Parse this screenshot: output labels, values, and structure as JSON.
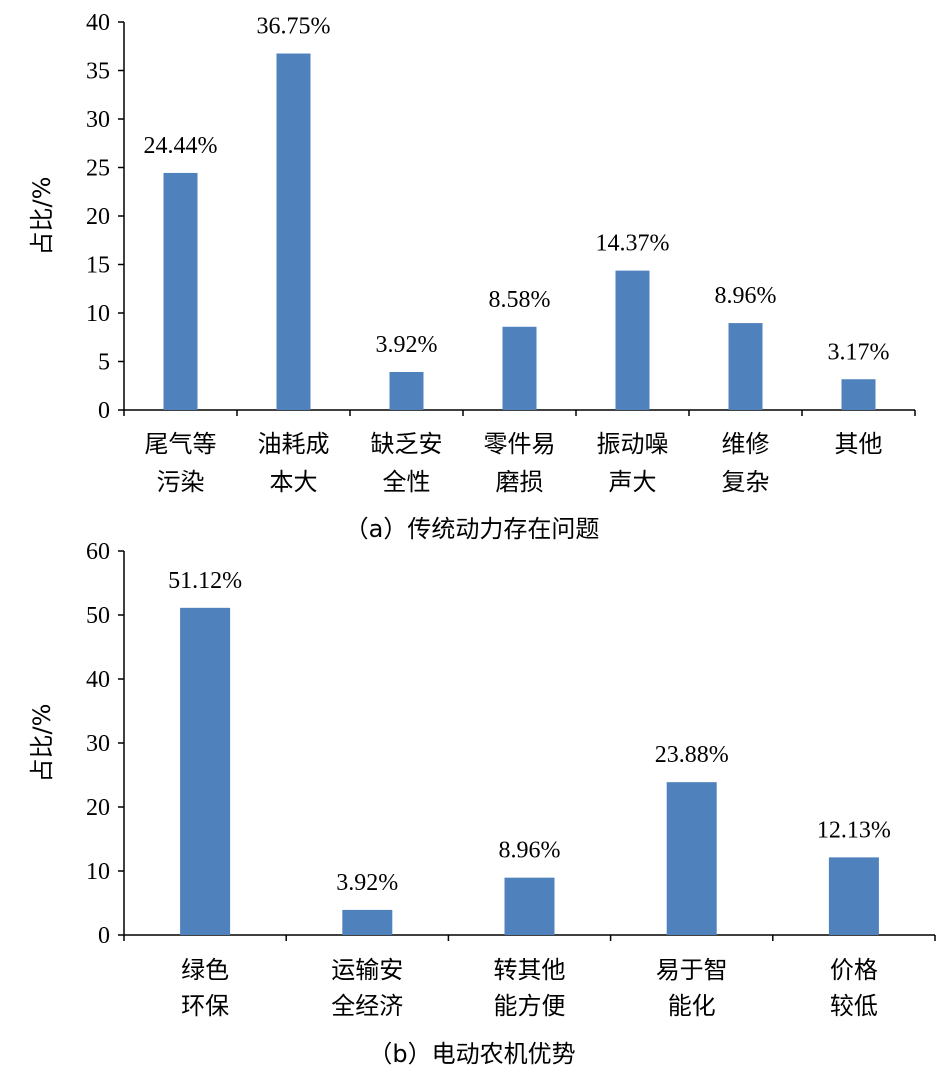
{
  "bar_color": "#4f81bd",
  "chart_data": [
    {
      "type": "bar",
      "caption": "（a）传统动力存在问题",
      "ylabel": "占比/%",
      "ylim": [
        0,
        40
      ],
      "yticks": [
        0,
        5,
        10,
        15,
        20,
        25,
        30,
        35,
        40
      ],
      "categories": [
        [
          "尾气等",
          "污染"
        ],
        [
          "油耗成",
          "本大"
        ],
        [
          "缺乏安",
          "全性"
        ],
        [
          "零件易",
          "磨损"
        ],
        [
          "振动噪",
          "声大"
        ],
        [
          "维修",
          "复杂"
        ],
        [
          "其他"
        ]
      ],
      "values": [
        24.44,
        36.75,
        3.92,
        8.58,
        14.37,
        8.96,
        3.17
      ],
      "data_labels": [
        "24.44%",
        "36.75%",
        "3.92%",
        "8.58%",
        "14.37%",
        "8.96%",
        "3.17%"
      ]
    },
    {
      "type": "bar",
      "caption": "（b）电动农机优势",
      "ylabel": "占比/%",
      "ylim": [
        0,
        60
      ],
      "yticks": [
        0,
        10,
        20,
        30,
        40,
        50,
        60
      ],
      "categories": [
        [
          "绿色",
          "环保"
        ],
        [
          "运输安",
          "全经济"
        ],
        [
          "转其他",
          "能方便"
        ],
        [
          "易于智",
          "能化"
        ],
        [
          "价格",
          "较低"
        ]
      ],
      "values": [
        51.12,
        3.92,
        8.96,
        23.88,
        12.13
      ],
      "data_labels": [
        "51.12%",
        "3.92%",
        "8.96%",
        "23.88%",
        "12.13%"
      ]
    }
  ]
}
